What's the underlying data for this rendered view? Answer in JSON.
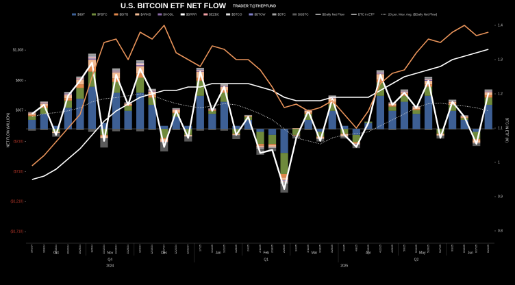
{
  "chart_data": {
    "type": "bar",
    "title": "U.S. BITCOIN ETF NET FLOW",
    "subtitle": "TRADER T@THEPFUND",
    "y_label": "NET FLOW (MILLION)",
    "y2_label": "BTC IN ETF (M)",
    "categories": [
      "10/1/24",
      "10/8/24",
      "10/15/24",
      "10/22/24",
      "10/29/24",
      "11/5/24",
      "11/12/24",
      "11/19/24",
      "11/26/24",
      "12/3/24",
      "12/10/24",
      "12/17/24",
      "12/24/24",
      "12/31/24",
      "1/7/25",
      "1/14/25",
      "1/21/25",
      "1/28/25",
      "2/4/25",
      "2/11/25",
      "2/18/25",
      "2/25/25",
      "3/4/25",
      "3/11/25",
      "3/18/25",
      "3/25/25",
      "4/1/25",
      "4/8/25",
      "4/15/25",
      "4/22/25",
      "4/29/25",
      "5/6/25",
      "5/13/25",
      "5/20/25",
      "5/27/25",
      "6/3/25",
      "6/10/25",
      "6/17/25",
      "6/24/25"
    ],
    "months": [
      "Oct",
      "Nov",
      "Dec",
      "Jan",
      "Feb",
      "Mar",
      "Apr",
      "May",
      "Jun"
    ],
    "quarters": [
      "Q4",
      "Q1",
      "Q2"
    ],
    "years": [
      "2024",
      "2025"
    ],
    "ylim": [
      -1900,
      1800
    ],
    "yticks": [
      {
        "value": 1308,
        "label": "$1,308"
      },
      {
        "value": 800,
        "label": "$800"
      },
      {
        "value": 307,
        "label": "$307"
      },
      {
        "value": -210,
        "label": "($210)"
      },
      {
        "value": -710,
        "label": "($710)"
      },
      {
        "value": -1210,
        "label": "($1,210)"
      },
      {
        "value": -1710,
        "label": "($1,710)"
      }
    ],
    "y2lim": [
      0.764,
      1.414
    ],
    "y2ticks": [
      0.8,
      0.9,
      1.0,
      1.1,
      1.2,
      1.3,
      1.4
    ],
    "series": [
      {
        "name": "$IBIT",
        "color": "#3d5f94",
        "values": [
          150,
          250,
          50,
          350,
          500,
          700,
          100,
          600,
          300,
          600,
          400,
          50,
          200,
          50,
          550,
          250,
          450,
          50,
          150,
          -50,
          -100,
          -400,
          0,
          150,
          -50,
          300,
          50,
          -100,
          100,
          550,
          300,
          450,
          250,
          550,
          0,
          300,
          150,
          -50,
          400
        ]
      },
      {
        "name": "$FBTC",
        "color": "#6f8a3c",
        "values": [
          60,
          100,
          -50,
          120,
          180,
          250,
          -100,
          180,
          80,
          250,
          120,
          -150,
          60,
          -100,
          250,
          50,
          150,
          -80,
          50,
          -200,
          -150,
          -350,
          -100,
          100,
          -80,
          120,
          -80,
          -120,
          20,
          220,
          70,
          100,
          60,
          150,
          -80,
          100,
          30,
          -120,
          120
        ]
      },
      {
        "name": "$BITB",
        "color": "#e0874c",
        "values": [
          20,
          30,
          0,
          40,
          60,
          80,
          -20,
          60,
          20,
          70,
          40,
          -20,
          20,
          0,
          50,
          10,
          40,
          -10,
          10,
          -30,
          -20,
          -60,
          -10,
          20,
          -10,
          30,
          -10,
          -20,
          0,
          50,
          20,
          40,
          20,
          40,
          -10,
          30,
          10,
          -20,
          40
        ]
      },
      {
        "name": "$ARKB",
        "color": "#f2bb94",
        "values": [
          30,
          40,
          -20,
          50,
          80,
          120,
          -30,
          100,
          20,
          120,
          60,
          -40,
          40,
          -20,
          100,
          10,
          60,
          -10,
          10,
          -20,
          -30,
          -40,
          10,
          30,
          -20,
          60,
          -30,
          -10,
          0,
          90,
          30,
          20,
          30,
          60,
          -20,
          20,
          20,
          -40,
          50
        ]
      },
      {
        "name": "$HODL",
        "color": "#8a6aa8",
        "values": [
          5,
          10,
          0,
          10,
          10,
          20,
          0,
          10,
          5,
          20,
          10,
          0,
          5,
          0,
          10,
          5,
          10,
          0,
          0,
          -5,
          -5,
          -10,
          0,
          5,
          0,
          10,
          0,
          -5,
          0,
          10,
          5,
          10,
          5,
          10,
          0,
          5,
          5,
          0,
          10
        ]
      },
      {
        "name": "$BRRR",
        "color": "#ffffff",
        "values": [
          0,
          5,
          0,
          5,
          5,
          10,
          0,
          5,
          0,
          10,
          5,
          0,
          0,
          0,
          5,
          0,
          5,
          0,
          0,
          0,
          -5,
          -5,
          0,
          0,
          0,
          5,
          0,
          0,
          0,
          5,
          0,
          5,
          0,
          5,
          0,
          0,
          0,
          0,
          5
        ]
      },
      {
        "name": "$EZBC",
        "color": "#f0a0a4",
        "values": [
          5,
          5,
          0,
          10,
          10,
          15,
          0,
          10,
          5,
          15,
          5,
          -5,
          5,
          0,
          10,
          5,
          5,
          0,
          0,
          -5,
          0,
          -10,
          0,
          5,
          0,
          5,
          0,
          -5,
          0,
          10,
          5,
          5,
          5,
          10,
          0,
          5,
          0,
          -5,
          5
        ]
      },
      {
        "name": "$BTCO",
        "color": "#dddddd",
        "values": [
          0,
          5,
          0,
          5,
          5,
          10,
          0,
          5,
          0,
          10,
          5,
          0,
          5,
          0,
          5,
          0,
          5,
          0,
          0,
          0,
          0,
          -5,
          0,
          0,
          0,
          5,
          0,
          0,
          0,
          5,
          0,
          5,
          0,
          5,
          0,
          5,
          0,
          0,
          5
        ]
      },
      {
        "name": "$BTCW",
        "color": "#8080c8",
        "values": [
          0,
          0,
          0,
          5,
          0,
          5,
          0,
          5,
          0,
          5,
          0,
          0,
          0,
          0,
          5,
          0,
          0,
          0,
          0,
          0,
          0,
          0,
          0,
          0,
          0,
          0,
          0,
          0,
          0,
          5,
          0,
          0,
          0,
          5,
          0,
          0,
          0,
          0,
          0
        ]
      },
      {
        "name": "$BTC",
        "color": "#a0a0a0",
        "values": [
          10,
          10,
          0,
          20,
          20,
          40,
          -10,
          30,
          10,
          40,
          20,
          -10,
          10,
          -10,
          30,
          10,
          20,
          -10,
          10,
          -20,
          -10,
          -30,
          0,
          10,
          -10,
          20,
          -10,
          -10,
          0,
          30,
          10,
          20,
          10,
          30,
          -10,
          20,
          10,
          -10,
          20
        ]
      },
      {
        "name": "$GBTC",
        "color": "#5a5a5a",
        "values": [
          -30,
          -20,
          -60,
          -10,
          -20,
          -50,
          -150,
          -40,
          -20,
          -40,
          -20,
          -150,
          -20,
          -80,
          -30,
          -20,
          -30,
          -60,
          -20,
          -100,
          -50,
          -150,
          -50,
          -20,
          -40,
          -10,
          -30,
          -50,
          -20,
          -10,
          -20,
          -10,
          -10,
          -20,
          -40,
          -10,
          -10,
          -40,
          -10
        ]
      },
      {
        "name": "$Daily Net Flow",
        "type": "line",
        "color": "#ffffff",
        "width": 2.4,
        "values": [
          250,
          400,
          -100,
          550,
          800,
          1100,
          -200,
          900,
          400,
          1000,
          600,
          -300,
          300,
          -150,
          950,
          300,
          700,
          -100,
          200,
          -400,
          -350,
          -1000,
          -150,
          300,
          -200,
          500,
          -100,
          -300,
          100,
          900,
          400,
          600,
          350,
          800,
          -150,
          450,
          200,
          -250,
          600
        ]
      },
      {
        "name": "BTC in ETF",
        "type": "line",
        "axis": "y2",
        "color": "#ffffff",
        "width": 1.6,
        "values": [
          0.95,
          0.96,
          0.98,
          1.01,
          1.04,
          1.08,
          1.12,
          1.15,
          1.17,
          1.19,
          1.2,
          1.21,
          1.21,
          1.22,
          1.22,
          1.23,
          1.23,
          1.23,
          1.23,
          1.22,
          1.21,
          1.19,
          1.18,
          1.18,
          1.18,
          1.19,
          1.19,
          1.19,
          1.19,
          1.21,
          1.23,
          1.25,
          1.26,
          1.27,
          1.28,
          1.3,
          1.31,
          1.32,
          1.33
        ]
      },
      {
        "name": "20 per. Mov. Avg. ($Daily Net Flow)",
        "type": "line",
        "dash": true,
        "color": "#d8d8d8",
        "width": 1,
        "values": [
          200,
          250,
          270,
          300,
          350,
          450,
          500,
          520,
          550,
          580,
          560,
          480,
          420,
          380,
          350,
          380,
          420,
          400,
          330,
          250,
          150,
          0,
          -150,
          -200,
          -250,
          -150,
          -100,
          -80,
          -50,
          50,
          150,
          250,
          350,
          420,
          430,
          400,
          380,
          350,
          300
        ]
      },
      {
        "type": "line",
        "axis": "y2",
        "color": "#e8935a",
        "width": 1.6,
        "values": [
          0.99,
          1.02,
          1.06,
          1.1,
          1.14,
          1.25,
          1.35,
          1.36,
          1.3,
          1.38,
          1.36,
          1.4,
          1.32,
          1.3,
          1.28,
          1.34,
          1.33,
          1.3,
          1.3,
          1.27,
          1.22,
          1.16,
          1.17,
          1.15,
          1.16,
          1.18,
          1.14,
          1.1,
          1.15,
          1.23,
          1.26,
          1.27,
          1.32,
          1.36,
          1.35,
          1.38,
          1.4,
          1.37,
          1.38
        ]
      }
    ]
  }
}
